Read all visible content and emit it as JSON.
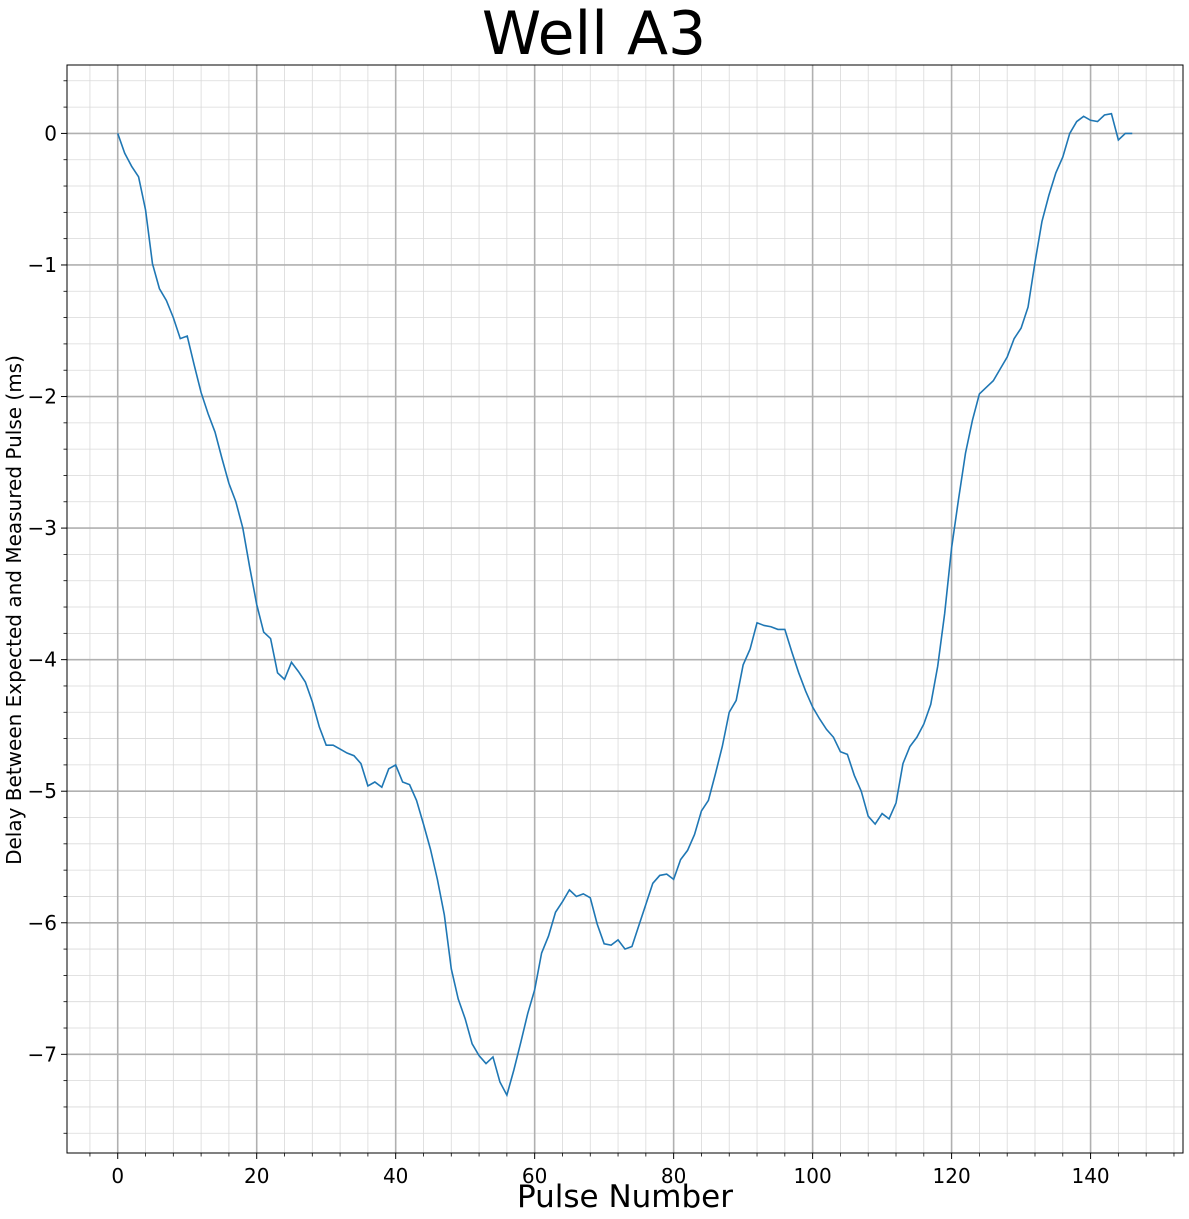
{
  "chart_data": {
    "type": "line",
    "title": "Well A3",
    "xlabel": "Pulse Number",
    "ylabel": "Delay Between Expected and Measured Pulse (ms)",
    "xlim": [
      -7.3,
      153.3
    ],
    "ylim": [
      -7.75,
      0.52
    ],
    "xticks": [
      0,
      20,
      40,
      60,
      80,
      100,
      120,
      140
    ],
    "yticks": [
      0,
      -1,
      -2,
      -3,
      -4,
      -5,
      -6,
      -7
    ],
    "xtick_labels": [
      "0",
      "20",
      "40",
      "60",
      "80",
      "100",
      "120",
      "140"
    ],
    "ytick_labels": [
      "0",
      "−1",
      "−2",
      "−3",
      "−4",
      "−5",
      "−6",
      "−7"
    ],
    "grid": true,
    "minor_grid": true,
    "series": [
      {
        "color": "#1f77b4",
        "x": [
          0,
          1,
          2,
          3,
          4,
          5,
          6,
          7,
          8,
          9,
          10,
          11,
          12,
          13,
          14,
          15,
          16,
          17,
          18,
          19,
          20,
          21,
          22,
          23,
          24,
          25,
          26,
          27,
          28,
          29,
          30,
          31,
          32,
          33,
          34,
          35,
          36,
          37,
          38,
          39,
          40,
          41,
          42,
          43,
          44,
          45,
          46,
          47,
          48,
          49,
          50,
          51,
          52,
          53,
          54,
          55,
          56,
          57,
          58,
          59,
          60,
          61,
          62,
          63,
          64,
          65,
          66,
          67,
          68,
          69,
          70,
          71,
          72,
          73,
          74,
          75,
          76,
          77,
          78,
          79,
          80,
          81,
          82,
          83,
          84,
          85,
          86,
          87,
          88,
          89,
          90,
          91,
          92,
          93,
          94,
          95,
          96,
          97,
          98,
          99,
          100,
          101,
          102,
          103,
          104,
          105,
          106,
          107,
          108,
          109,
          110,
          111,
          112,
          113,
          114,
          115,
          116,
          117,
          118,
          119,
          120,
          121,
          122,
          123,
          124,
          125,
          126,
          127,
          128,
          129,
          130,
          131,
          132,
          133,
          134,
          135,
          136,
          137,
          138,
          139,
          140,
          141,
          142,
          143,
          144,
          145,
          146
        ],
        "y": [
          0,
          -0.15,
          -0.25,
          -0.33,
          -0.58,
          -0.99,
          -1.18,
          -1.27,
          -1.4,
          -1.56,
          -1.54,
          -1.76,
          -1.97,
          -2.13,
          -2.27,
          -2.47,
          -2.66,
          -2.8,
          -3.0,
          -3.3,
          -3.58,
          -3.79,
          -3.84,
          -4.1,
          -4.15,
          -4.02,
          -4.09,
          -4.17,
          -4.32,
          -4.51,
          -4.65,
          -4.65,
          -4.68,
          -4.71,
          -4.73,
          -4.79,
          -4.96,
          -4.93,
          -4.97,
          -4.83,
          -4.8,
          -4.93,
          -4.95,
          -5.07,
          -5.25,
          -5.44,
          -5.67,
          -5.94,
          -6.35,
          -6.58,
          -6.73,
          -6.92,
          -7.01,
          -7.07,
          -7.02,
          -7.21,
          -7.31,
          -7.12,
          -6.91,
          -6.69,
          -6.51,
          -6.23,
          -6.1,
          -5.92,
          -5.84,
          -5.75,
          -5.8,
          -5.78,
          -5.81,
          -6.01,
          -6.16,
          -6.17,
          -6.13,
          -6.2,
          -6.18,
          -6.02,
          -5.86,
          -5.7,
          -5.64,
          -5.63,
          -5.67,
          -5.52,
          -5.45,
          -5.33,
          -5.15,
          -5.07,
          -4.87,
          -4.66,
          -4.4,
          -4.31,
          -4.04,
          -3.92,
          -3.72,
          -3.74,
          -3.75,
          -3.77,
          -3.77,
          -3.94,
          -4.1,
          -4.24,
          -4.36,
          -4.45,
          -4.53,
          -4.59,
          -4.7,
          -4.72,
          -4.88,
          -5.0,
          -5.19,
          -5.25,
          -5.17,
          -5.21,
          -5.09,
          -4.79,
          -4.66,
          -4.59,
          -4.49,
          -4.34,
          -4.05,
          -3.65,
          -3.15,
          -2.78,
          -2.43,
          -2.18,
          -1.98,
          -1.93,
          -1.88,
          -1.79,
          -1.7,
          -1.56,
          -1.48,
          -1.32,
          -0.98,
          -0.67,
          -0.47,
          -0.3,
          -0.18,
          0.0,
          0.09,
          0.13,
          0.1,
          0.09,
          0.14,
          0.15,
          -0.05,
          0.0,
          0.0
        ]
      }
    ]
  }
}
